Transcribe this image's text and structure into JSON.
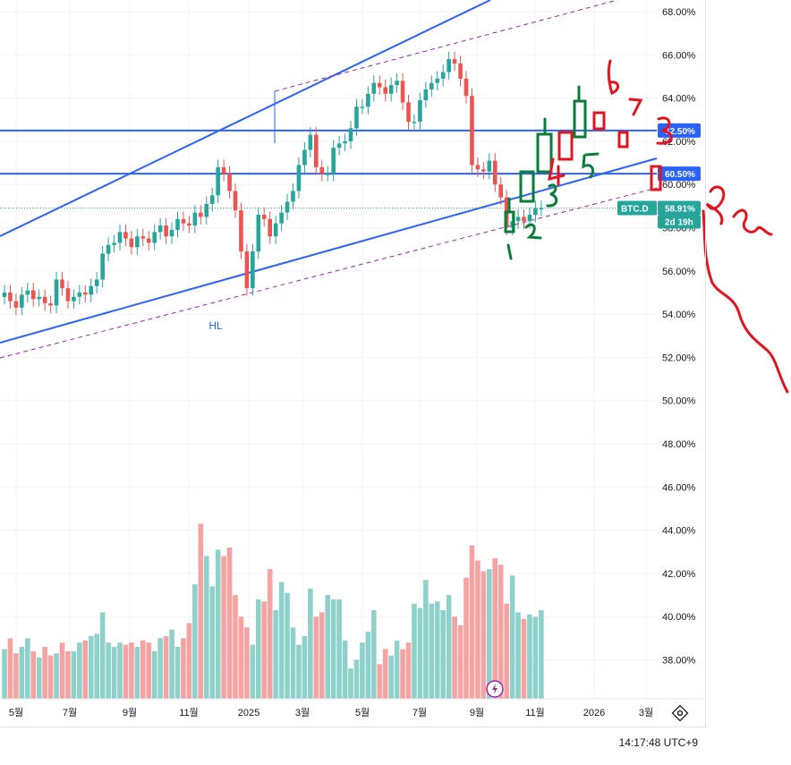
{
  "chart_data": {
    "type": "candlestick",
    "symbol": "BTC.D",
    "y_axis": {
      "ticks": [
        "38.00%",
        "40.00%",
        "42.00%",
        "44.00%",
        "46.00%",
        "48.00%",
        "50.00%",
        "52.00%",
        "54.00%",
        "56.00%",
        "58.00%",
        "60.00%",
        "62.00%",
        "64.00%",
        "66.00%",
        "68.00%"
      ],
      "range": [
        36.5,
        68.5
      ]
    },
    "x_axis": {
      "ticks": [
        "5월",
        "7월",
        "9월",
        "11월",
        "2025",
        "3월",
        "5월",
        "7월",
        "9월",
        "11월",
        "2026",
        "3월"
      ]
    },
    "price_labels": [
      {
        "text": "62.50%",
        "value": 62.5,
        "color": "#2962ff"
      },
      {
        "text": "60.50%",
        "value": 60.5,
        "color": "#2962ff"
      },
      {
        "text": "58.91%",
        "value": 58.91,
        "color": "#26a69a"
      }
    ],
    "countdown": "2d 19h",
    "annotation_text": "HL",
    "horizontal_levels": [
      62.5,
      60.5
    ],
    "last_value": 58.91,
    "closes": [
      55.0,
      54.6,
      54.3,
      54.9,
      55.1,
      54.7,
      54.8,
      54.5,
      54.4,
      55.6,
      55.2,
      54.6,
      54.8,
      55.0,
      54.9,
      55.3,
      55.6,
      56.8,
      57.2,
      57.3,
      57.8,
      57.5,
      57.1,
      57.6,
      57.5,
      57.3,
      57.8,
      58.1,
      57.6,
      57.9,
      58.4,
      58.2,
      58.1,
      58.7,
      58.5,
      59.1,
      59.5,
      60.8,
      60.5,
      59.7,
      58.8,
      56.9,
      55.2,
      56.9,
      58.6,
      58.4,
      57.6,
      58.2,
      58.7,
      59.2,
      59.7,
      60.9,
      61.6,
      62.3,
      60.8,
      60.5,
      60.5,
      61.7,
      61.9,
      62.0,
      62.6,
      63.6,
      63.6,
      64.2,
      64.7,
      64.5,
      64.2,
      64.6,
      64.8,
      63.8,
      62.9,
      62.9,
      63.9,
      64.4,
      64.7,
      64.9,
      65.2,
      65.8,
      65.6,
      64.9,
      64.1,
      60.9,
      60.7,
      60.6,
      61.1,
      60.0,
      59.4,
      58.0,
      58.3,
      58.5,
      58.3,
      58.6,
      58.9,
      58.91
    ],
    "volumes": [
      38.5,
      39.0,
      38.3,
      38.6,
      39.0,
      38.4,
      38.1,
      38.6,
      38.2,
      38.3,
      38.8,
      38.4,
      38.4,
      38.8,
      38.9,
      39.1,
      39.2,
      40.2,
      38.8,
      38.6,
      38.8,
      38.7,
      38.8,
      38.6,
      38.9,
      38.8,
      38.4,
      39.0,
      39.1,
      39.4,
      38.6,
      39.0,
      39.7,
      41.5,
      44.3,
      42.8,
      41.4,
      43.1,
      42.8,
      43.2,
      41.0,
      40.0,
      39.5,
      38.7,
      40.8,
      40.7,
      42.2,
      40.3,
      41.6,
      41.1,
      39.5,
      38.7,
      39.1,
      41.3,
      40.0,
      40.2,
      41.0,
      40.8,
      40.8,
      38.9,
      37.6,
      38.0,
      38.8,
      39.3,
      40.3,
      37.8,
      38.5,
      38.2,
      38.9,
      38.5,
      38.8,
      40.6,
      40.4,
      41.7,
      40.6,
      40.7,
      40.3,
      41.0,
      40.0,
      39.6,
      41.8,
      43.3,
      42.6,
      42.1,
      42.2,
      42.7,
      42.4,
      40.6,
      41.9,
      40.2,
      39.9,
      40.1,
      40.0,
      40.3
    ]
  },
  "ui": {
    "clock": "14:17:48 UTC+9"
  }
}
